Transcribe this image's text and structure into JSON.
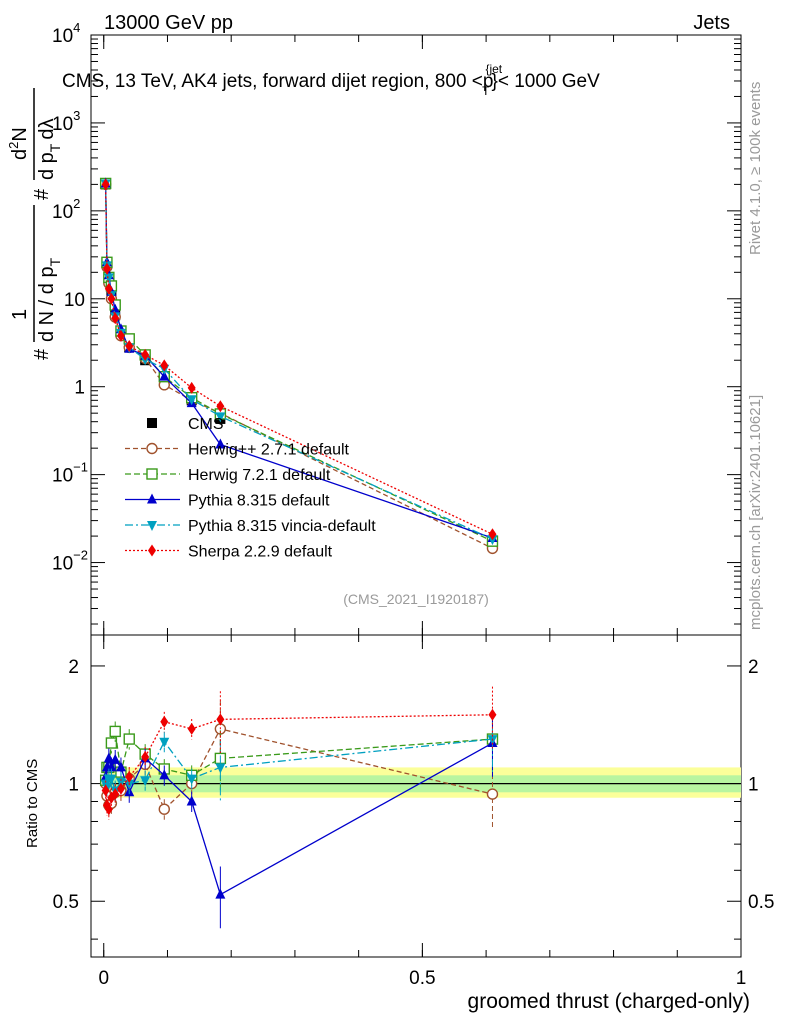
{
  "header": {
    "left_label": "13000 GeV pp",
    "right_label": "Jets",
    "subtitle": "CMS, 13 TeV, AK4 jets, forward dijet region, 800 <p",
    "subtitle_sup": "{jet",
    "subtitle_sub": "T",
    "subtitle_end": "}< 1000 GeV",
    "rivet_label": "Rivet 4.1.0, ≥ 100k events",
    "mcplots_label": "mcplots.cern.ch [arXiv:2401.10621]",
    "analysis_id": "(CMS_2021_I1920187)"
  },
  "axes": {
    "xlabel": "groomed thrust (charged-only)",
    "ratio_ylabel": "Ratio to CMS",
    "ylabel_parts": [
      "1",
      "d N / d p",
      "T",
      "#",
      "d",
      "2",
      "N",
      "d p",
      "T",
      "dλ",
      "#"
    ],
    "x_ticks": [
      "0",
      "0.5",
      "1"
    ],
    "y_ticks": [
      {
        "base": "10",
        "exp": "−2",
        "value": 0.01
      },
      {
        "base": "10",
        "exp": "−1",
        "value": 0.1
      },
      {
        "base": "1",
        "exp": "",
        "value": 1
      },
      {
        "base": "10",
        "exp": "",
        "value": 10
      },
      {
        "base": "10",
        "exp": "2",
        "value": 100
      },
      {
        "base": "10",
        "exp": "3",
        "value": 1000
      },
      {
        "base": "10",
        "exp": "4",
        "value": 10000
      }
    ],
    "ratio_ticks": [
      "0.5",
      "1",
      "2"
    ]
  },
  "chart_data": {
    "type": "line",
    "xlim": [
      -0.02,
      1.0
    ],
    "ylim": [
      0.0015,
      10000
    ],
    "yscale": "log",
    "ratio_ylim": [
      0.36,
      2.4
    ],
    "x": [
      0.003,
      0.005,
      0.008,
      0.012,
      0.018,
      0.027,
      0.04,
      0.065,
      0.095,
      0.138,
      0.183,
      0.61
    ],
    "series": [
      {
        "name": "CMS",
        "style": "data",
        "color": "#000000",
        "values": [
          200,
          25,
          17,
          11,
          6.5,
          4,
          2.8,
          2.0,
          1.3,
          0.7,
          0.43,
          0.0155
        ]
      },
      {
        "name": "Herwig++ 2.7.1 default",
        "color": "#a0522d",
        "marker": "circle-open",
        "dash": "5,3",
        "values": [
          200,
          23,
          15,
          10,
          6.2,
          3.8,
          2.8,
          2.1,
          1.05,
          0.7,
          0.5,
          0.0145
        ],
        "ratio": [
          1.0,
          0.93,
          0.88,
          0.89,
          0.95,
          0.96,
          1.03,
          1.12,
          0.86,
          1.0,
          1.38,
          0.94
        ]
      },
      {
        "name": "Herwig 7.2.1 default",
        "color": "#3a9a1a",
        "marker": "square-open",
        "dash": "6,3",
        "values": [
          205,
          26,
          17.5,
          14,
          8.5,
          4.3,
          3.5,
          2.3,
          1.3,
          0.75,
          0.49,
          0.0175
        ],
        "ratio": [
          1.02,
          1.1,
          1.1,
          1.27,
          1.36,
          1.07,
          1.3,
          1.19,
          1.09,
          1.05,
          1.16,
          1.3
        ]
      },
      {
        "name": "Pythia 8.315 default",
        "color": "#0000cc",
        "marker": "triangle-up",
        "dash": "",
        "values": [
          205,
          26,
          18.5,
          12,
          7.5,
          4.5,
          2.7,
          2.25,
          1.3,
          0.65,
          0.22,
          0.019
        ],
        "ratio": [
          1.04,
          1.1,
          1.16,
          1.1,
          1.15,
          1.1,
          0.95,
          1.16,
          1.05,
          0.9,
          0.52,
          1.27
        ]
      },
      {
        "name": "Pythia 8.315 vincia-default",
        "color": "#00a0c0",
        "marker": "triangle-down",
        "dash": "8,3,2,3",
        "values": [
          205,
          24,
          17.5,
          11,
          6.3,
          4.1,
          2.8,
          2.05,
          1.6,
          0.72,
          0.46,
          0.0185
        ],
        "ratio": [
          1.0,
          0.98,
          1.03,
          1.03,
          0.96,
          1.01,
          1.0,
          1.02,
          1.28,
          1.03,
          1.1,
          1.3
        ]
      },
      {
        "name": "Sherpa 2.2.9 default",
        "color": "#ee0000",
        "marker": "diamond",
        "dash": "2,2",
        "values": [
          200,
          22,
          13,
          10,
          6,
          3.8,
          2.9,
          2.3,
          1.75,
          0.97,
          0.6,
          0.021
        ],
        "ratio": [
          0.96,
          0.88,
          0.86,
          0.92,
          0.94,
          0.97,
          1.04,
          1.17,
          1.44,
          1.38,
          1.46,
          1.5
        ]
      }
    ],
    "uncertainty_band": {
      "inner": [
        0.95,
        1.05
      ],
      "outer": [
        0.92,
        1.1
      ]
    }
  }
}
